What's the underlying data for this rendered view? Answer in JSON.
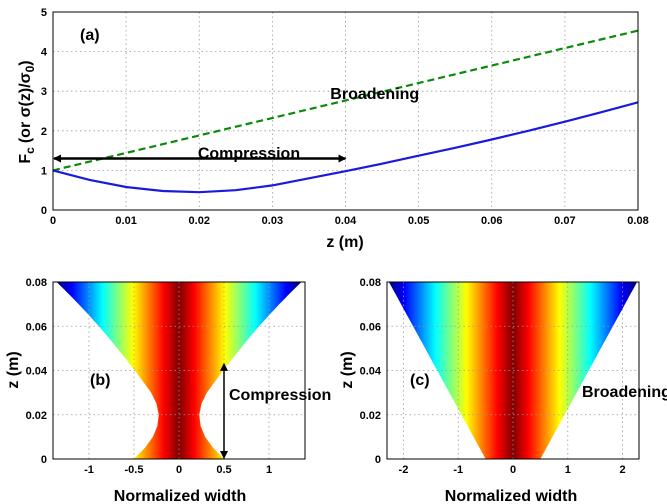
{
  "chart_data": [
    {
      "panel": "a",
      "type": "line",
      "panel_label": "(a)",
      "xlabel": "z (m)",
      "ylabel_main": "F",
      "ylabel_sub": "c",
      "ylabel_rest": "(or σ(z)/σ",
      "ylabel_sub2": "0",
      "ylabel_end": ")",
      "xlim": [
        0,
        0.08
      ],
      "ylim": [
        0,
        5
      ],
      "xticks": [
        "0",
        "0.01",
        "0.02",
        "0.03",
        "0.04",
        "0.05",
        "0.06",
        "0.07",
        "0.08"
      ],
      "yticks": [
        "0",
        "1",
        "2",
        "3",
        "4",
        "5"
      ],
      "grid": true,
      "series": [
        {
          "name": "Broadening",
          "color": "#0b8a0b",
          "style": "dashed",
          "x": [
            0,
            0.08
          ],
          "y": [
            1.0,
            4.53
          ]
        },
        {
          "name": "Compression",
          "color": "#1a1adc",
          "style": "solid",
          "x": [
            0,
            0.005,
            0.01,
            0.015,
            0.02,
            0.025,
            0.03,
            0.035,
            0.04,
            0.045,
            0.05,
            0.055,
            0.06,
            0.065,
            0.07,
            0.075,
            0.08
          ],
          "y": [
            1.0,
            0.76,
            0.58,
            0.48,
            0.45,
            0.5,
            0.62,
            0.8,
            0.98,
            1.17,
            1.37,
            1.57,
            1.78,
            2.0,
            2.23,
            2.47,
            2.72
          ]
        }
      ],
      "annotations": [
        {
          "text": "Broadening",
          "x": 0.044,
          "y": 2.8
        },
        {
          "text": "Compression",
          "x": 0.0268,
          "y": 1.35,
          "arrow_from": [
            0,
            1.3
          ],
          "arrow_to": [
            0.04,
            1.3
          ]
        }
      ]
    },
    {
      "panel": "b",
      "type": "heatmap",
      "panel_label": "(b)",
      "annotation": "Compression",
      "xlabel": "Normalized width",
      "ylabel": "z (m)",
      "xlim": [
        -1.4,
        1.4
      ],
      "ylim": [
        0,
        0.08
      ],
      "xticks": [
        "-1",
        "-0.5",
        "0",
        "0.5",
        "1"
      ],
      "yticks": [
        "0",
        "0.02",
        "0.04",
        "0.06",
        "0.08"
      ],
      "grid": true,
      "colormap": "jet",
      "arrow_x": 0.5,
      "arrow_y_range": [
        0,
        0.043
      ],
      "half_width_profile": {
        "z": [
          0,
          0.005,
          0.01,
          0.015,
          0.02,
          0.025,
          0.03,
          0.035,
          0.04,
          0.045,
          0.05,
          0.055,
          0.06,
          0.065,
          0.07,
          0.075,
          0.08
        ],
        "w": [
          0.5,
          0.38,
          0.29,
          0.24,
          0.225,
          0.25,
          0.31,
          0.4,
          0.49,
          0.585,
          0.685,
          0.785,
          0.89,
          1.0,
          1.115,
          1.235,
          1.36
        ]
      }
    },
    {
      "panel": "c",
      "type": "heatmap",
      "panel_label": "(c)",
      "annotation": "Broadening",
      "xlabel": "Normalized width",
      "ylabel": "z (m)",
      "xlim": [
        -2.3,
        2.3
      ],
      "ylim": [
        0,
        0.08
      ],
      "xticks": [
        "-2",
        "-1",
        "0",
        "1",
        "2"
      ],
      "yticks": [
        "0",
        "0.02",
        "0.04",
        "0.06",
        "0.08"
      ],
      "grid": true,
      "colormap": "jet",
      "half_width_profile": {
        "z": [
          0,
          0.08
        ],
        "w": [
          0.5,
          2.265
        ]
      }
    }
  ]
}
